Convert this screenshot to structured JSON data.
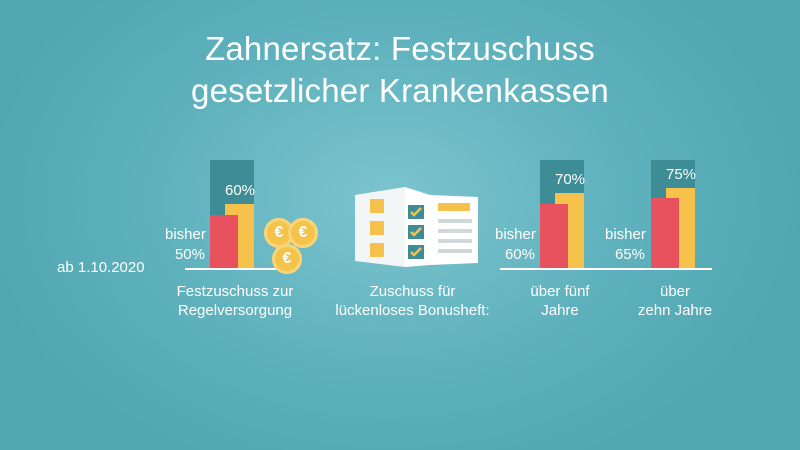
{
  "chart_data": {
    "type": "bar",
    "title": "Zahnersatz: Festzuschuss gesetzlicher Krankenkassen",
    "title_lines": [
      "Zahnersatz: Festzuschuss",
      "gesetzlicher Krankenkassen"
    ],
    "date_label": "ab 1.10.2020",
    "bonus_caption": [
      "Zuschuss für",
      "lückenloses Bonusheft:"
    ],
    "groups": [
      {
        "caption": [
          "Festzuschuss zur",
          "Regelversorgung"
        ],
        "previous_label": [
          "bisher",
          "50%"
        ],
        "previous": 50,
        "new": 60,
        "new_label": "60%"
      },
      {
        "caption": [
          "über fünf",
          "Jahre"
        ],
        "previous_label": [
          "bisher",
          "60%"
        ],
        "previous": 60,
        "new": 70,
        "new_label": "70%"
      },
      {
        "caption": [
          "über",
          "zehn Jahre"
        ],
        "previous_label": [
          "bisher",
          "65%"
        ],
        "previous": 65,
        "new": 75,
        "new_label": "75%"
      }
    ],
    "colors": {
      "previous": "#e8525f",
      "new": "#f7c24c",
      "backdrop": "#3e8c96",
      "background": "#5fb2bd"
    },
    "coin_symbol": "€"
  }
}
